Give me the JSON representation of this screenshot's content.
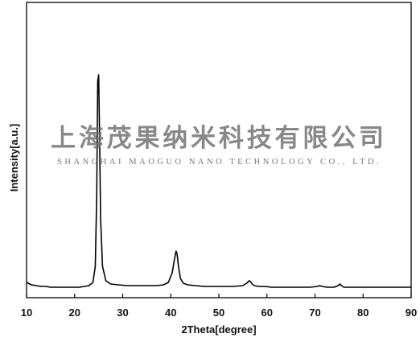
{
  "chart_data": {
    "type": "line",
    "title": "",
    "xlabel": "2Theta[degree]",
    "ylabel": "Intensity[a.u.]",
    "xlim": [
      10,
      90
    ],
    "xticks": [
      10,
      20,
      30,
      40,
      50,
      60,
      70,
      80,
      90
    ],
    "grid": false,
    "legend": "none",
    "series": [
      {
        "color": "#000000",
        "x": [
          10,
          11,
          12,
          13,
          14,
          15,
          16,
          17,
          18,
          19,
          20,
          21,
          22,
          23,
          23.8,
          24.3,
          24.6,
          24.8,
          25.0,
          25.2,
          25.4,
          25.8,
          26.5,
          27.5,
          29,
          31,
          33,
          35,
          37,
          38.5,
          39.5,
          40.3,
          40.8,
          41.1,
          41.3,
          41.6,
          42.0,
          42.6,
          43.5,
          45,
          47,
          49,
          51,
          53,
          55,
          55.8,
          56.3,
          56.6,
          56.9,
          57.4,
          58.2,
          59.5,
          61,
          63,
          65,
          67,
          69,
          70.5,
          71.0,
          71.5,
          72.5,
          74,
          74.8,
          75.2,
          75.5,
          76.0,
          77,
          79,
          81,
          83,
          85,
          87,
          89,
          90
        ],
        "y": [
          10,
          7,
          6,
          5,
          5,
          4,
          4,
          4,
          4,
          4,
          4,
          4,
          5,
          6,
          10,
          30,
          120,
          260,
          268,
          190,
          90,
          30,
          12,
          8,
          7,
          6,
          6,
          6,
          6,
          7,
          10,
          22,
          40,
          49,
          46,
          30,
          15,
          9,
          7,
          6,
          5,
          5,
          5,
          5,
          6,
          9,
          12,
          11,
          8,
          6,
          5,
          5,
          4,
          4,
          4,
          4,
          4,
          5,
          6,
          5,
          4,
          4,
          6,
          8,
          6,
          4,
          4,
          4,
          4,
          4,
          4,
          4,
          4,
          4
        ]
      }
    ]
  },
  "watermark": {
    "company_cn": "上海茂果纳米科技有限公司",
    "company_en": "SHANGHAI MAOGUO NANO TECHNOLOGY CO., LTD."
  }
}
